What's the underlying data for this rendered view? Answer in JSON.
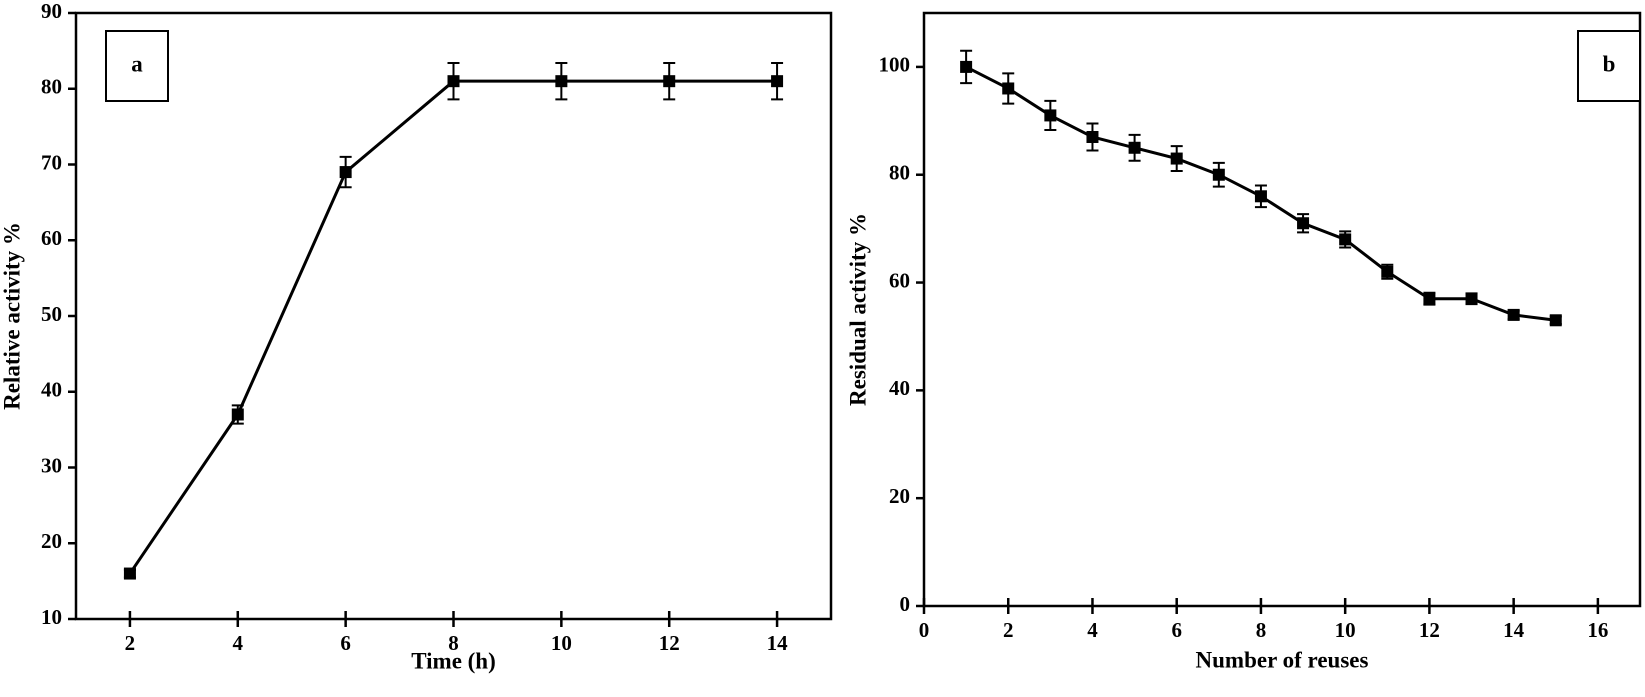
{
  "chart_data": [
    {
      "type": "line",
      "annotation": "a",
      "xlabel": "Time (h)",
      "ylabel": "Relative activity %",
      "x": [
        2,
        4,
        6,
        8,
        10,
        12,
        14
      ],
      "values": [
        16,
        37,
        69,
        81,
        81,
        81,
        81
      ],
      "errors": [
        0.5,
        1.2,
        2,
        2.4,
        2.4,
        2.4,
        2.4
      ],
      "color": "#000000",
      "xlim": [
        1,
        15
      ],
      "xticks": [
        2,
        4,
        6,
        8,
        10,
        12,
        14
      ],
      "ylim": [
        10,
        90
      ],
      "yticks": [
        10,
        20,
        30,
        40,
        50,
        60,
        70,
        80,
        90
      ],
      "annotation_corner": "top-left"
    },
    {
      "type": "line",
      "annotation": "b",
      "xlabel": "Number of reuses",
      "ylabel": "Residual activity %",
      "x": [
        1,
        2,
        3,
        4,
        5,
        6,
        7,
        8,
        9,
        10,
        11,
        12,
        13,
        14,
        15
      ],
      "values": [
        100,
        96,
        91,
        87,
        85,
        83,
        80,
        76,
        71,
        68,
        62,
        57,
        57,
        54,
        53
      ],
      "errors": [
        3,
        2.8,
        2.7,
        2.5,
        2.4,
        2.3,
        2.2,
        2,
        1.7,
        1.5,
        1.3,
        1.1,
        1,
        0.8,
        0.7
      ],
      "color": "#000000",
      "xlim": [
        0,
        17
      ],
      "xticks": [
        0,
        2,
        4,
        6,
        8,
        10,
        12,
        14,
        16
      ],
      "ylim": [
        0,
        110
      ],
      "yticks": [
        0,
        20,
        40,
        60,
        80,
        100
      ],
      "annotation_corner": "top-right"
    }
  ]
}
